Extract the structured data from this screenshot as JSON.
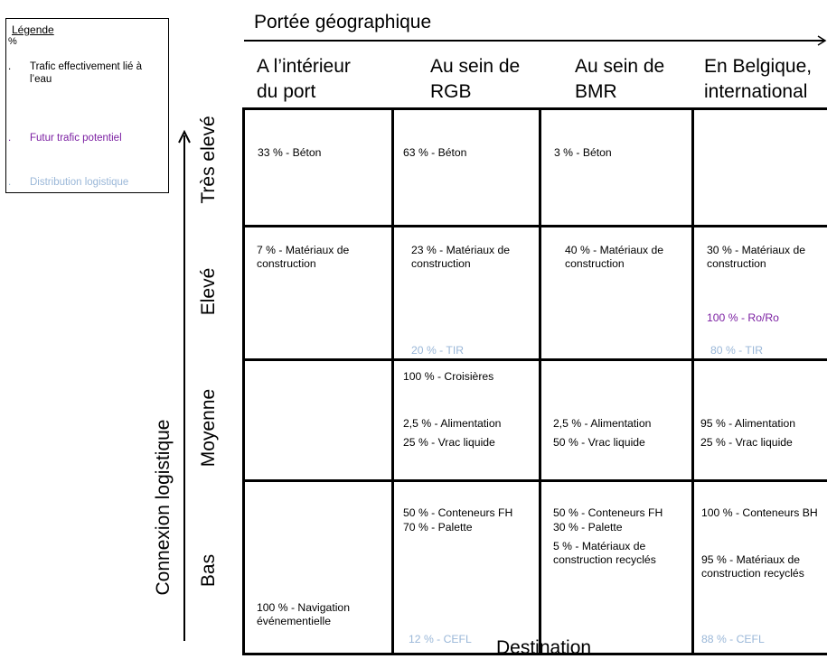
{
  "legend": {
    "title": "Légende",
    "unit": "%",
    "items": [
      {
        "bullet": ".",
        "text": "Trafic effectivement lié à l’eau",
        "color": "#000000"
      },
      {
        "bullet": ".",
        "text": "Futur trafic potentiel",
        "color": "#7b1fa2"
      },
      {
        "bullet": ".",
        "text": "Distribution logistique",
        "color": "#9ab7d8"
      }
    ]
  },
  "top_axis": {
    "title": "Portée géographique"
  },
  "columns": [
    {
      "line1": "A l’intérieur",
      "line2": "du port"
    },
    {
      "line1": "Au sein de",
      "line2": "RGB"
    },
    {
      "line1": "Au sein de",
      "line2": "BMR"
    },
    {
      "line1": "En Belgique,",
      "line2": "international"
    }
  ],
  "left_axis": {
    "title": "Connexion logistique"
  },
  "rows": [
    {
      "label": "Très elevé"
    },
    {
      "label": "Elevé"
    },
    {
      "label": "Moyenne"
    },
    {
      "label": "Bas"
    }
  ],
  "cells": {
    "r0c0": {
      "a": "33 % - Béton"
    },
    "r0c1": {
      "a": "63 % - Béton"
    },
    "r0c2": {
      "a": "3 % - Béton"
    },
    "r1c0": {
      "a": "7 % - Matériaux de",
      "b": "construction"
    },
    "r1c1": {
      "a": "23 % - Matériaux de",
      "b": "construction",
      "tir": "20 %  - TIR"
    },
    "r1c2": {
      "a": "40 % - Matériaux de",
      "b": "construction"
    },
    "r1c3": {
      "a": "30 % - Matériaux de",
      "b": "construction",
      "roro": "100 % -  Ro/Ro",
      "tir": "80 %  - TIR"
    },
    "r2c1": {
      "a": "100 % - Croisières",
      "b": "2,5 % - Alimentation",
      "c": "25 % - Vrac liquide"
    },
    "r2c2": {
      "b": "2,5 % - Alimentation",
      "c": "50 % - Vrac liquide"
    },
    "r2c3": {
      "b": "95 % - Alimentation",
      "c": "25 % - Vrac liquide"
    },
    "r3c0": {
      "a": "100 % - Navigation",
      "b": "événementielle"
    },
    "r3c1": {
      "a": "50 % - Conteneurs FH",
      "b": "70 % - Palette",
      "cefl": "12 % - CEFL"
    },
    "r3c2": {
      "a": "50 % - Conteneurs FH",
      "b": "30 % - Palette",
      "c": "5 % - Matériaux de",
      "d": "construction recyclés"
    },
    "r3c3": {
      "a": "100 % - Conteneurs BH",
      "c": "95 % - Matériaux de",
      "d": "construction recyclés",
      "cefl": "88 % - CEFL"
    }
  },
  "bottom_axis": {
    "title": "Destination"
  }
}
